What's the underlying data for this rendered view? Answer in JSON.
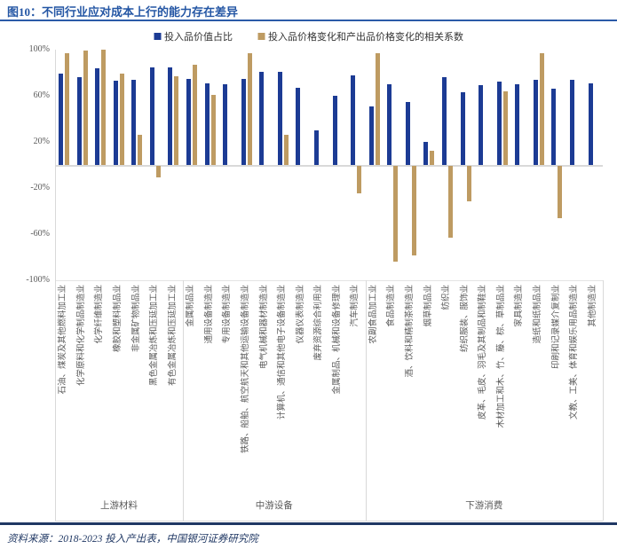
{
  "header": {
    "title": "图10：不同行业应对成本上行的能力存在差异"
  },
  "legend": [
    {
      "label": "投入品价值占比",
      "color": "#1C3B94"
    },
    {
      "label": "投入品价格变化和产出品价格变化的相关系数",
      "color": "#BE9B62"
    }
  ],
  "source_note": "资料来源：2018-2023 投入产出表，中国银河证券研究院",
  "chart_data": {
    "type": "bar",
    "title": "不同行业应对成本上行的能力存在差异",
    "unit": "%",
    "ylim": [
      -100,
      100
    ],
    "yticks": [
      100,
      60,
      20,
      -20,
      -60,
      -100
    ],
    "grid": "zero-line-only",
    "legend_position": "top-center",
    "series_names": [
      "投入品价值占比",
      "投入品价格变化和产出品价格变化的相关系数"
    ],
    "colors": {
      "value_share": "#1C3B94",
      "correlation": "#BE9B62"
    },
    "groups": [
      {
        "label": "上游材料",
        "industries": [
          {
            "name": "石油、煤炭及其他燃料加工业",
            "value_share": 79,
            "correlation": 97
          },
          {
            "name": "化学原料和化学制品制造业",
            "value_share": 76,
            "correlation": 99
          },
          {
            "name": "化学纤维制造业",
            "value_share": 84,
            "correlation": 100
          },
          {
            "name": "橡胶和塑料制品业",
            "value_share": 73,
            "correlation": 79
          },
          {
            "name": "非金属矿物制品业",
            "value_share": 74,
            "correlation": 26
          },
          {
            "name": "黑色金属冶炼和压延加工业",
            "value_share": 85,
            "correlation": -10
          },
          {
            "name": "有色金属冶炼和压延加工业",
            "value_share": 85,
            "correlation": 77
          }
        ]
      },
      {
        "label": "中游设备",
        "industries": [
          {
            "name": "金属制品业",
            "value_share": 75,
            "correlation": 87
          },
          {
            "name": "通用设备制造业",
            "value_share": 71,
            "correlation": 61
          },
          {
            "name": "专用设备制造业",
            "value_share": 70,
            "correlation": 0
          },
          {
            "name": "铁路、船舶、航空航天和其他运输设备制造业",
            "value_share": 75,
            "correlation": 97
          },
          {
            "name": "电气机械和器材制造业",
            "value_share": 81,
            "correlation": 0
          },
          {
            "name": "计算机、通信和其他电子设备制造业",
            "value_share": 81,
            "correlation": 26
          },
          {
            "name": "仪器仪表制造业",
            "value_share": 67,
            "correlation": 0
          },
          {
            "name": "废弃资源综合利用业",
            "value_share": 30,
            "correlation": 0
          },
          {
            "name": "金属制品、机械和设备修理业",
            "value_share": 60,
            "correlation": 0
          },
          {
            "name": "汽车制造业",
            "value_share": 78,
            "correlation": -24
          }
        ]
      },
      {
        "label": "下游消费",
        "industries": [
          {
            "name": "农副食品加工业",
            "value_share": 51,
            "correlation": 97
          },
          {
            "name": "食品制造业",
            "value_share": 70,
            "correlation": -83
          },
          {
            "name": "酒、饮料和精制茶制造业",
            "value_share": 55,
            "correlation": -78
          },
          {
            "name": "烟草制品业",
            "value_share": 20,
            "correlation": 12
          },
          {
            "name": "纺织业",
            "value_share": 76,
            "correlation": -62
          },
          {
            "name": "纺织服装、服饰业",
            "value_share": 63,
            "correlation": -31
          },
          {
            "name": "皮革、毛皮、羽毛及其制品和制鞋业",
            "value_share": 69,
            "correlation": 0
          },
          {
            "name": "木材加工和木、竹、藤、棕、草制品业",
            "value_share": 72,
            "correlation": 64
          },
          {
            "name": "家具制造业",
            "value_share": 70,
            "correlation": 0
          },
          {
            "name": "造纸和纸制品业",
            "value_share": 74,
            "correlation": 97
          },
          {
            "name": "印刷和记录媒介复制业",
            "value_share": 66,
            "correlation": -45
          },
          {
            "name": "文教、工美、体育和娱乐用品制造业",
            "value_share": 74,
            "correlation": 0
          },
          {
            "name": "其他制造业",
            "value_share": 71,
            "correlation": 0
          }
        ]
      }
    ]
  }
}
